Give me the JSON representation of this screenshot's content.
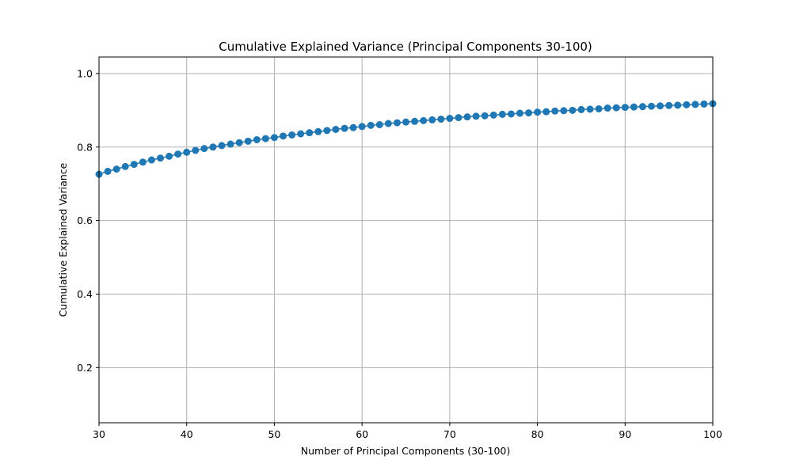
{
  "chart_data": {
    "type": "line",
    "title": "Cumulative Explained Variance (Principal Components 30-100)",
    "xlabel": "Number of Principal Components (30-100)",
    "ylabel": "Cumulative Explained Variance",
    "xlim": [
      30,
      100
    ],
    "ylim": [
      0.05,
      1.045
    ],
    "xticks": [
      30,
      40,
      50,
      60,
      70,
      80,
      90,
      100
    ],
    "xtick_labels": [
      "30",
      "40",
      "50",
      "60",
      "70",
      "80",
      "90",
      "100"
    ],
    "yticks": [
      0.2,
      0.4,
      0.6,
      0.8,
      1.0
    ],
    "ytick_labels": [
      "0.2",
      "0.4",
      "0.6",
      "0.8",
      "1.0"
    ],
    "grid": true,
    "marker": "circle",
    "colors": {
      "series": "#1f77b4",
      "grid": "#b0b0b0",
      "axes": "#000000"
    },
    "series": [
      {
        "x": [
          30,
          31,
          32,
          33,
          34,
          35,
          36,
          37,
          38,
          39,
          40,
          41,
          42,
          43,
          44,
          45,
          46,
          47,
          48,
          49,
          50,
          51,
          52,
          53,
          54,
          55,
          56,
          57,
          58,
          59,
          60,
          61,
          62,
          63,
          64,
          65,
          66,
          67,
          68,
          69,
          70,
          71,
          72,
          73,
          74,
          75,
          76,
          77,
          78,
          79,
          80,
          81,
          82,
          83,
          84,
          85,
          86,
          87,
          88,
          89,
          90,
          91,
          92,
          93,
          94,
          95,
          96,
          97,
          98,
          99,
          100
        ],
        "y": [
          0.726,
          0.734,
          0.74,
          0.747,
          0.753,
          0.759,
          0.765,
          0.77,
          0.775,
          0.781,
          0.786,
          0.791,
          0.796,
          0.8,
          0.804,
          0.808,
          0.812,
          0.816,
          0.82,
          0.823,
          0.826,
          0.83,
          0.833,
          0.836,
          0.839,
          0.842,
          0.845,
          0.848,
          0.851,
          0.853,
          0.856,
          0.859,
          0.861,
          0.864,
          0.866,
          0.868,
          0.87,
          0.872,
          0.874,
          0.876,
          0.878,
          0.88,
          0.882,
          0.884,
          0.885,
          0.887,
          0.889,
          0.89,
          0.892,
          0.893,
          0.895,
          0.896,
          0.898,
          0.899,
          0.9,
          0.902,
          0.903,
          0.904,
          0.906,
          0.907,
          0.908,
          0.909,
          0.91,
          0.911,
          0.912,
          0.913,
          0.914,
          0.915,
          0.916,
          0.917,
          0.918
        ]
      }
    ]
  }
}
